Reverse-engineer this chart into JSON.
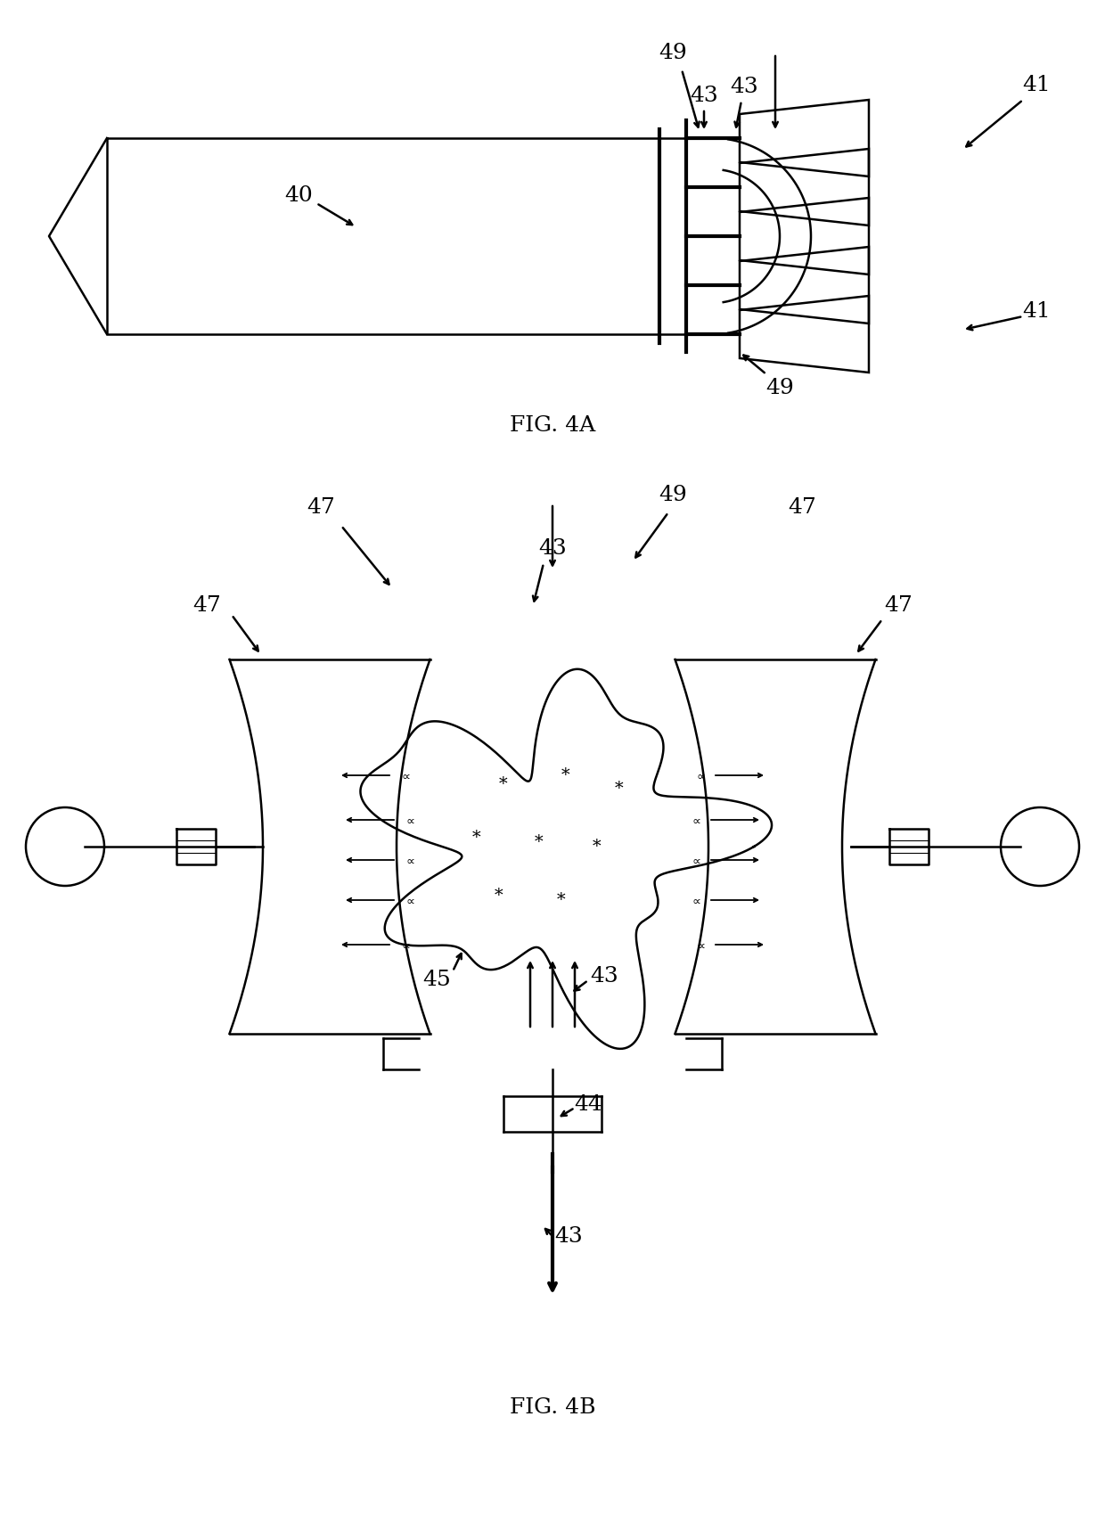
{
  "bg_color": "#ffffff",
  "line_color": "#000000",
  "fig_width": 12.4,
  "fig_height": 17.09,
  "fig4a_caption": "FIG. 4A",
  "fig4b_caption": "FIG. 4B"
}
